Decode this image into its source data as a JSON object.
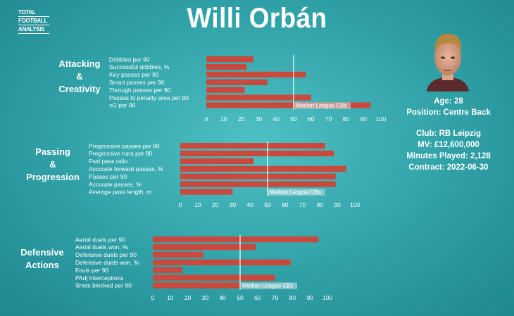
{
  "logo": {
    "lines": [
      "TOTAL",
      "FOOTBALL",
      "ANALYSIS"
    ]
  },
  "title": "Willi Orbán",
  "player": {
    "age": "Age: 28",
    "position": "Position: Centre Back",
    "club": "Club: RB Leipzig",
    "mv": "MV: £12,600,000",
    "minutes": "Minutes Played: 2,128",
    "contract": "Contract: 2022-06-30"
  },
  "colors": {
    "bar": "#c94a3c",
    "median_line": "#ffffff",
    "median_label_bg": "#cfe3e4"
  },
  "chart_data": [
    {
      "type": "bar",
      "orientation": "horizontal",
      "section": [
        "Attacking",
        "&",
        "Creativity"
      ],
      "categories": [
        "Dribbles per 90",
        "Successful dribbles, %",
        "Key passes per 90",
        "Smart passes per 90",
        "Through passes per 90",
        "Passes to penalty area per 90",
        "xG per 90"
      ],
      "values": [
        27,
        23,
        57,
        35,
        22,
        60,
        94
      ],
      "median": 50,
      "median_label": "Median League CBs",
      "xlim": [
        0,
        100
      ],
      "ticks": [
        0,
        10,
        20,
        30,
        40,
        50,
        60,
        70,
        80,
        90,
        100
      ]
    },
    {
      "type": "bar",
      "orientation": "horizontal",
      "section": [
        "Passing",
        "&",
        "Progression"
      ],
      "categories": [
        "Progressive passes per 90",
        "Progressive runs per 90",
        "Fwd pass ratio",
        "Accurate forward passes, %",
        "Passes per 90",
        "Accurate passes, %",
        "Average pass length, m"
      ],
      "values": [
        83,
        88,
        42,
        95,
        89,
        89,
        30
      ],
      "median": 50,
      "median_label": "Median League CBs",
      "xlim": [
        0,
        100
      ],
      "ticks": [
        0,
        10,
        20,
        30,
        40,
        50,
        60,
        70,
        80,
        90,
        100
      ]
    },
    {
      "type": "bar",
      "orientation": "horizontal",
      "section": [
        "Defensive",
        "Actions"
      ],
      "categories": [
        "Aerial duels per 90",
        "Aerial duels won, %",
        "Defensive duels per 90",
        "Defensive duels won, %",
        "Fouls per 90",
        "PAdj Interceptions",
        "Shots blocked per 90"
      ],
      "values": [
        95,
        59,
        29,
        79,
        17,
        70,
        50
      ],
      "median": 50,
      "median_label": "Median League CBs",
      "xlim": [
        0,
        100
      ],
      "ticks": [
        0,
        10,
        20,
        30,
        40,
        50,
        60,
        70,
        80,
        90,
        100
      ]
    }
  ]
}
